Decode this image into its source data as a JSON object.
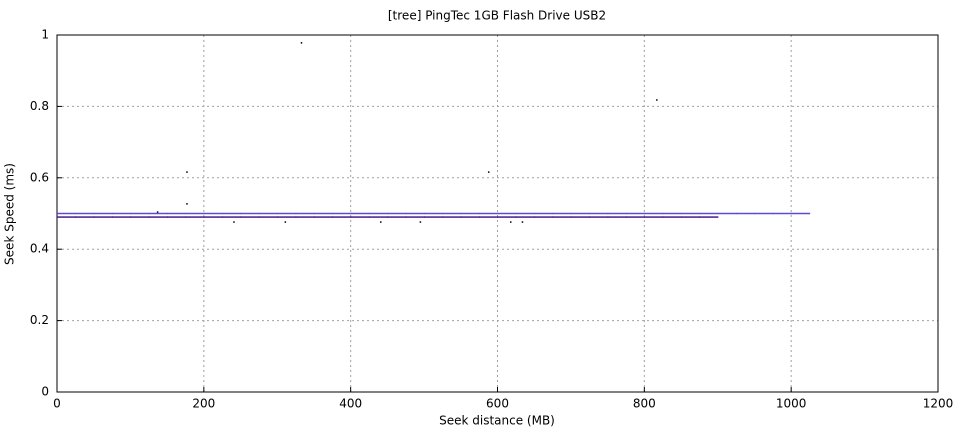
{
  "chart_data": {
    "type": "scatter",
    "title": "[tree] PingTec 1GB Flash Drive USB2",
    "x_label": "Seek distance (MB)",
    "y_label": "Seek Speed (ms)",
    "xlim": [
      0,
      1200
    ],
    "ylim": [
      0,
      1
    ],
    "xticks": [
      0,
      200,
      400,
      600,
      800,
      1000,
      1200
    ],
    "yticks": [
      0,
      0.2,
      0.4,
      0.6,
      0.8,
      1
    ],
    "grid": true,
    "series": [
      {
        "color": "#5b4bd6",
        "marker": "dash",
        "x": [
          0,
          25,
          50,
          75,
          100,
          125,
          150,
          175,
          200,
          225,
          250,
          275,
          300,
          325,
          350,
          375,
          400,
          425,
          450,
          475,
          500,
          525,
          550,
          575,
          600,
          625,
          650,
          675,
          700,
          725,
          750,
          775,
          800,
          825,
          850,
          875,
          900,
          925,
          950,
          975,
          1000
        ],
        "values": [
          0.5,
          0.5,
          0.5,
          0.5,
          0.5,
          0.5,
          0.5,
          0.5,
          0.5,
          0.5,
          0.5,
          0.5,
          0.5,
          0.5,
          0.5,
          0.5,
          0.5,
          0.5,
          0.5,
          0.5,
          0.5,
          0.5,
          0.5,
          0.5,
          0.5,
          0.5,
          0.5,
          0.5,
          0.5,
          0.5,
          0.5,
          0.5,
          0.5,
          0.5,
          0.5,
          0.5,
          0.5,
          0.5,
          0.5,
          0.5,
          0.5
        ]
      },
      {
        "color": "#4b1a8c",
        "marker": "dash",
        "x": [
          0,
          25,
          50,
          75,
          100,
          125,
          150,
          175,
          200,
          225,
          250,
          275,
          300,
          325,
          350,
          375,
          400,
          425,
          450,
          475,
          500,
          525,
          550,
          575,
          600,
          625,
          650,
          675,
          700,
          725,
          750,
          775,
          800,
          825,
          850,
          875
        ],
        "values": [
          0.49,
          0.49,
          0.49,
          0.49,
          0.49,
          0.49,
          0.49,
          0.49,
          0.49,
          0.49,
          0.49,
          0.49,
          0.49,
          0.49,
          0.49,
          0.49,
          0.49,
          0.49,
          0.49,
          0.49,
          0.49,
          0.49,
          0.49,
          0.49,
          0.49,
          0.49,
          0.49,
          0.49,
          0.49,
          0.49,
          0.49,
          0.49,
          0.49,
          0.49,
          0.49,
          0.49
        ]
      },
      {
        "color": "#000000",
        "marker": "dot",
        "x": [
          136,
          176,
          176,
          240,
          310,
          332,
          440,
          494,
          587,
          617,
          633,
          816
        ],
        "values": [
          0.504,
          0.527,
          0.616,
          0.476,
          0.476,
          0.978,
          0.476,
          0.476,
          0.616,
          0.476,
          0.476,
          0.818
        ]
      }
    ]
  }
}
